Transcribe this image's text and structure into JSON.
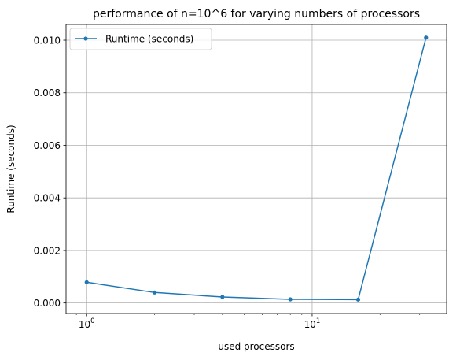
{
  "chart_data": {
    "type": "line",
    "title": "performance of n=10^6 for varying numbers of processors",
    "xlabel": "used processors",
    "ylabel": "Runtime (seconds)",
    "xscale": "log",
    "xlim": [
      0.81,
      39.5
    ],
    "ylim": [
      -0.0004,
      0.0106
    ],
    "x_ticks": [
      {
        "value": 1,
        "base": "10",
        "exp": "0"
      },
      {
        "value": 10,
        "base": "10",
        "exp": "1"
      }
    ],
    "y_ticks": [
      {
        "value": 0.0,
        "label": "0.000"
      },
      {
        "value": 0.002,
        "label": "0.002"
      },
      {
        "value": 0.004,
        "label": "0.004"
      },
      {
        "value": 0.006,
        "label": "0.006"
      },
      {
        "value": 0.008,
        "label": "0.008"
      },
      {
        "value": 0.01,
        "label": "0.010"
      }
    ],
    "grid": true,
    "legend_position": "top-left",
    "series": [
      {
        "name": "Runtime (seconds)",
        "color": "#1f77b4",
        "marker": "point",
        "x": [
          1,
          2,
          4,
          8,
          16,
          32
        ],
        "y": [
          0.00079,
          0.0004,
          0.00023,
          0.00014,
          0.00013,
          0.0101
        ]
      }
    ]
  }
}
